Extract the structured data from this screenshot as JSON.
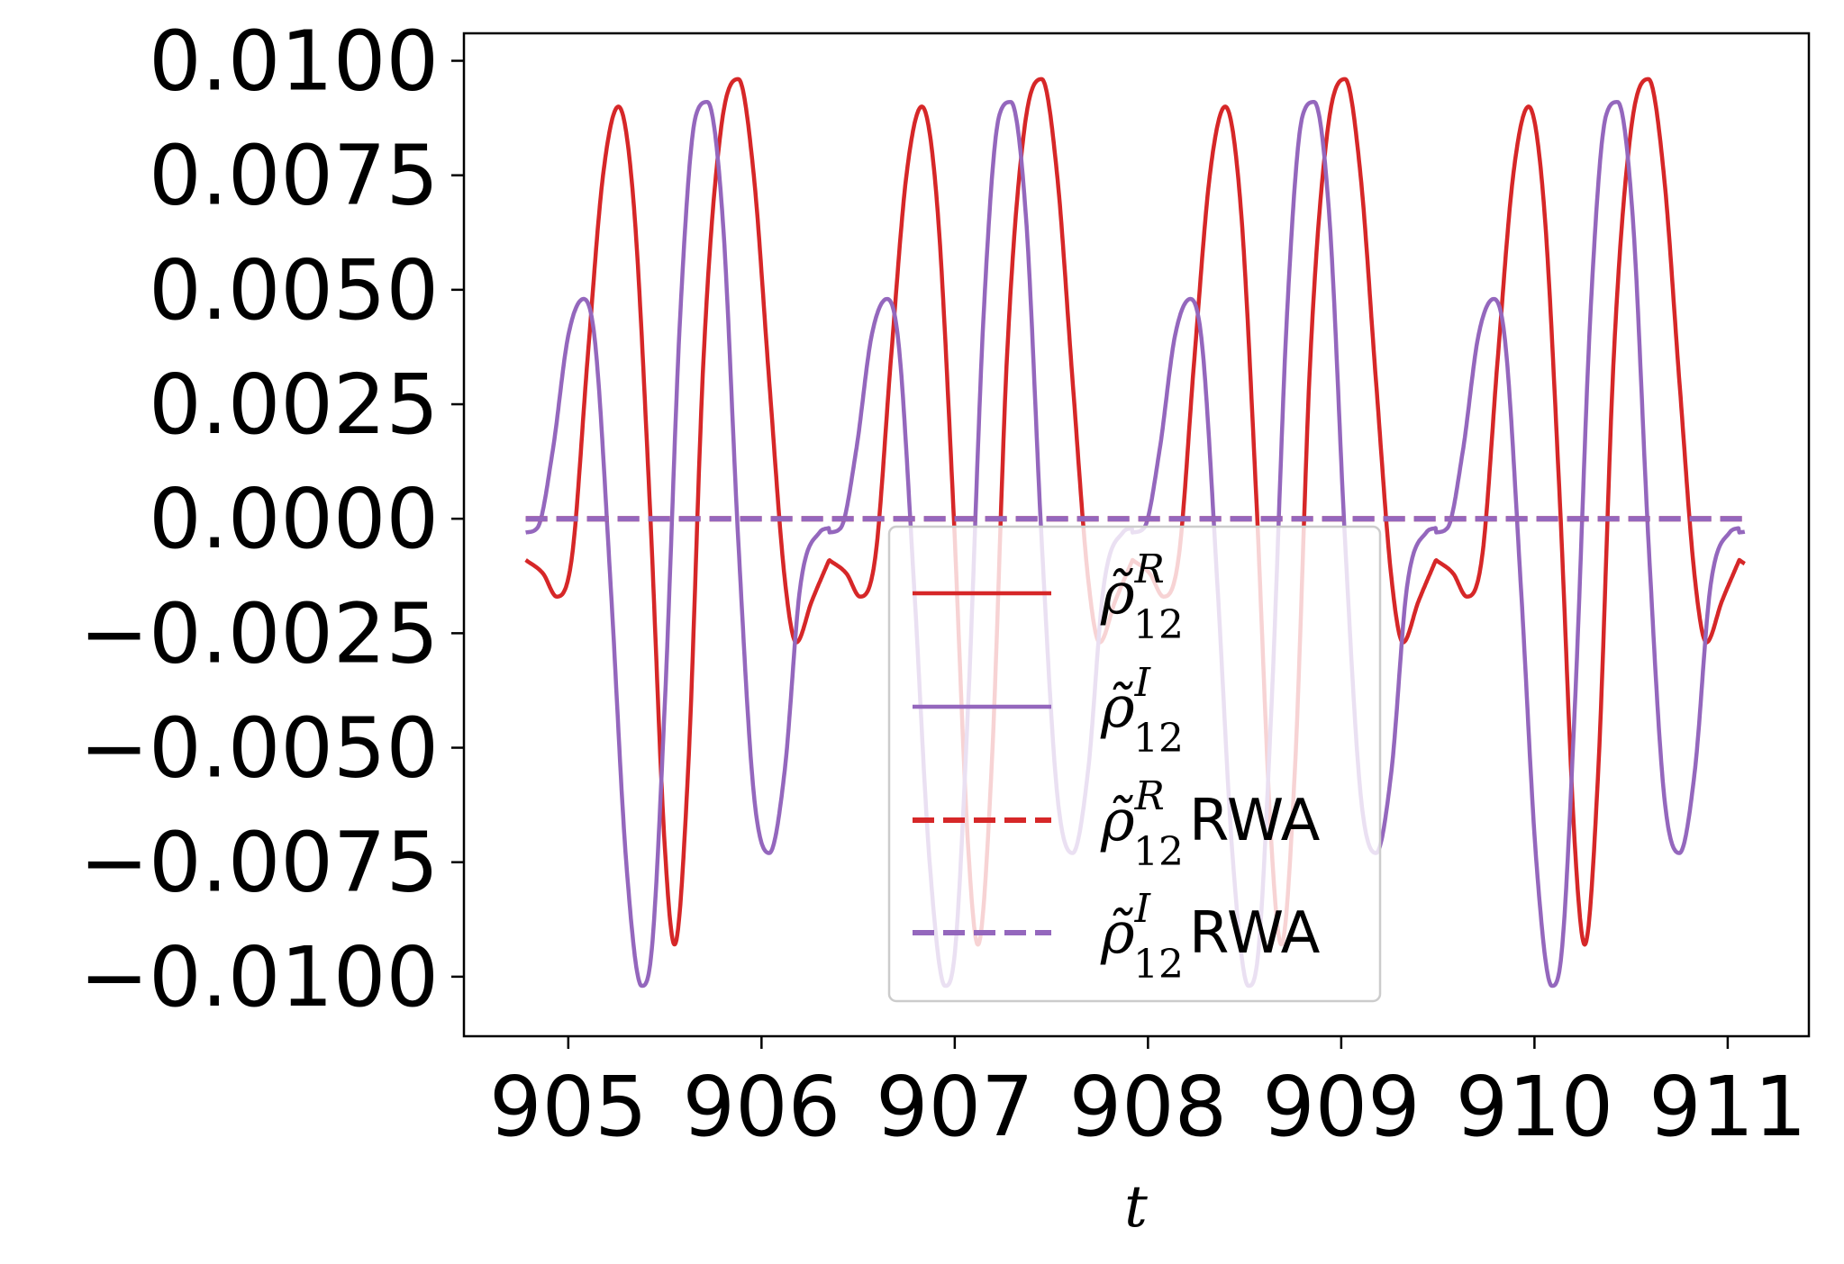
{
  "chart_data": {
    "type": "line",
    "title": "",
    "xlabel": "t",
    "ylabel": "",
    "xlim": [
      904.46,
      911.42
    ],
    "ylim": [
      -0.0113,
      0.0106
    ],
    "xticks": [
      905,
      906,
      907,
      908,
      909,
      910,
      911
    ],
    "xtick_labels": [
      "905",
      "906",
      "907",
      "908",
      "909",
      "910",
      "911"
    ],
    "yticks": [
      0.01,
      0.0075,
      0.005,
      0.0025,
      0.0,
      -0.0025,
      -0.005,
      -0.0075,
      -0.01
    ],
    "ytick_labels": [
      "0.0100",
      "0.0075",
      "0.0050",
      "0.0025",
      "0.0000",
      "−0.0025",
      "−0.0050",
      "−0.0075",
      "−0.0100"
    ],
    "grid": false,
    "legend_position": "bottom-center",
    "period": 1.57,
    "series": [
      {
        "name": "ρ̃_12^R",
        "legend_main": "ρ̃",
        "legend_sub": "12",
        "legend_sup": "R",
        "legend_suffix": "",
        "color": "#d62728",
        "style": "solid",
        "x": [
          904.78,
          904.87,
          904.94,
          905.02,
          905.1,
          905.18,
          905.26,
          905.34,
          905.42,
          905.5,
          905.55,
          905.62,
          905.7,
          905.79,
          905.88,
          905.96,
          906.04,
          906.12,
          906.18,
          906.26,
          906.35
        ],
        "y": [
          -0.0009,
          -0.0012,
          -0.0017,
          -0.0008,
          0.0035,
          0.0075,
          0.009,
          0.0068,
          0.0005,
          -0.0072,
          -0.0093,
          -0.0055,
          0.0035,
          0.0085,
          0.0096,
          0.0075,
          0.003,
          -0.0013,
          -0.0027,
          -0.0018,
          -0.0009
        ]
      },
      {
        "name": "ρ̃_12^I",
        "legend_main": "ρ̃",
        "legend_sub": "12",
        "legend_sup": "I",
        "legend_suffix": "",
        "color": "#9467bd",
        "style": "solid",
        "x": [
          904.78,
          904.84,
          904.92,
          905.0,
          905.08,
          905.14,
          905.22,
          905.3,
          905.38,
          905.43,
          905.5,
          905.58,
          905.66,
          905.72,
          905.8,
          905.88,
          905.96,
          906.04,
          906.12,
          906.2,
          906.3,
          906.35
        ],
        "y": [
          -0.0003,
          -0.0002,
          0.0015,
          0.004,
          0.0048,
          0.0038,
          -0.0015,
          -0.0075,
          -0.0102,
          -0.0095,
          -0.004,
          0.0045,
          0.0088,
          0.0091,
          0.0065,
          -0.0005,
          -0.006,
          -0.0073,
          -0.0055,
          -0.0015,
          -0.0003,
          -0.0002
        ]
      },
      {
        "name": "ρ̃_12^R RWA",
        "legend_main": "ρ̃",
        "legend_sub": "12",
        "legend_sup": "R",
        "legend_suffix": "RWA",
        "color": "#d62728",
        "style": "dashed",
        "x": [
          904.78,
          911.09
        ],
        "y": [
          0.0,
          0.0
        ]
      },
      {
        "name": "ρ̃_12^I RWA",
        "legend_main": "ρ̃",
        "legend_sub": "12",
        "legend_sup": "I",
        "legend_suffix": "RWA",
        "color": "#9467bd",
        "style": "dashed",
        "x": [
          904.78,
          911.09
        ],
        "y": [
          0.0,
          0.0
        ]
      }
    ]
  }
}
